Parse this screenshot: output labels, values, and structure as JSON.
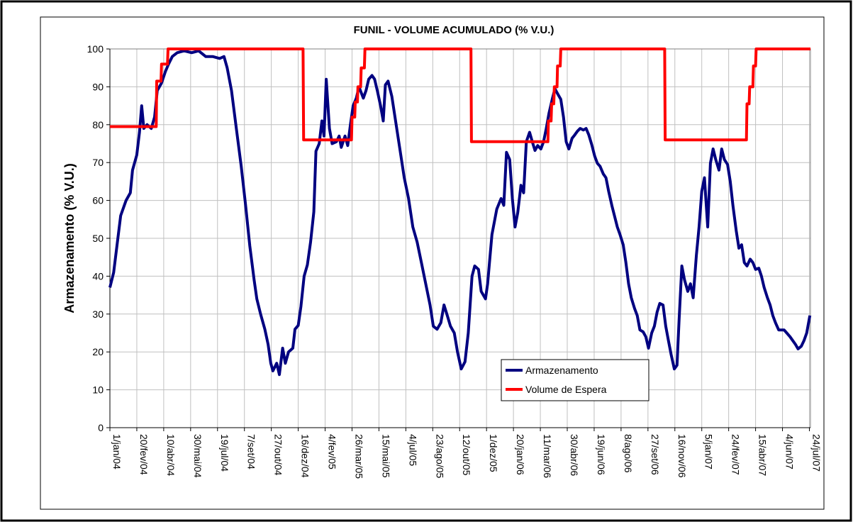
{
  "chart_data": {
    "type": "line",
    "title": "FUNIL - VOLUME ACUMULADO (% V.U.)",
    "y_label": "Armazenamento (% V.U.)",
    "xlim": [
      0,
      1302
    ],
    "xticks": [
      {
        "value": 0,
        "label": "1/jan/04"
      },
      {
        "value": 50,
        "label": "20/fev/04"
      },
      {
        "value": 100,
        "label": "10/abr/04"
      },
      {
        "value": 150,
        "label": "30/mai/04"
      },
      {
        "value": 200,
        "label": "19/jul/04"
      },
      {
        "value": 250,
        "label": "7/set/04"
      },
      {
        "value": 300,
        "label": "27/out/04"
      },
      {
        "value": 350,
        "label": "16/dez/04"
      },
      {
        "value": 400,
        "label": "4/fev/05"
      },
      {
        "value": 450,
        "label": "26/mar/05"
      },
      {
        "value": 500,
        "label": "15/mai/05"
      },
      {
        "value": 550,
        "label": "4/jul/05"
      },
      {
        "value": 600,
        "label": "23/ago/05"
      },
      {
        "value": 650,
        "label": "12/out/05"
      },
      {
        "value": 700,
        "label": "1/dez/05"
      },
      {
        "value": 750,
        "label": "20/jan/06"
      },
      {
        "value": 800,
        "label": "11/mar/06"
      },
      {
        "value": 850,
        "label": "30/abr/06"
      },
      {
        "value": 900,
        "label": "19/jun/06"
      },
      {
        "value": 950,
        "label": "8/ago/06"
      },
      {
        "value": 1000,
        "label": "27/set/06"
      },
      {
        "value": 1050,
        "label": "16/nov/06"
      },
      {
        "value": 1100,
        "label": "5/jan/07"
      },
      {
        "value": 1150,
        "label": "24/fev/07"
      },
      {
        "value": 1200,
        "label": "15/abr/07"
      },
      {
        "value": 1250,
        "label": "4/jun/07"
      },
      {
        "value": 1300,
        "label": "24/jul/07"
      }
    ],
    "ylim": [
      0,
      100
    ],
    "yticks": [
      0,
      10,
      20,
      30,
      40,
      50,
      60,
      70,
      80,
      90,
      100
    ],
    "grid": true,
    "legend": "lower-right",
    "series": [
      {
        "name": "Armazenamento",
        "color": "#000080",
        "x": [
          0,
          7,
          13,
          20,
          30,
          38,
          42,
          50,
          55,
          59,
          63,
          69,
          77,
          83,
          88,
          96,
          103,
          109,
          116,
          125,
          138,
          152,
          165,
          178,
          191,
          204,
          212,
          218,
          226,
          235,
          244,
          252,
          260,
          268,
          273,
          280,
          288,
          294,
          299,
          303,
          310,
          315,
          321,
          326,
          332,
          340,
          344,
          350,
          355,
          361,
          367,
          373,
          379,
          383,
          389,
          394,
          398,
          402,
          408,
          413,
          421,
          426,
          430,
          437,
          442,
          447,
          452,
          458,
          463,
          471,
          476,
          481,
          487,
          492,
          497,
          503,
          508,
          512,
          517,
          524,
          532,
          539,
          547,
          555,
          563,
          571,
          579,
          587,
          595,
          601,
          608,
          615,
          621,
          627,
          633,
          640,
          646,
          653,
          660,
          666,
          673,
          678,
          685,
          690,
          698,
          702,
          710,
          719,
          727,
          732,
          737,
          743,
          748,
          753,
          758,
          764,
          769,
          774,
          780,
          785,
          790,
          795,
          801,
          806,
          811,
          816,
          822,
          827,
          832,
          838,
          843,
          848,
          853,
          859,
          864,
          869,
          874,
          880,
          885,
          890,
          896,
          901,
          906,
          911,
          917,
          922,
          927,
          933,
          938,
          943,
          948,
          954,
          959,
          964,
          969,
          975,
          980,
          985,
          991,
          996,
          1001,
          1007,
          1012,
          1017,
          1022,
          1028,
          1033,
          1038,
          1043,
          1049,
          1054,
          1058,
          1063,
          1068,
          1074,
          1079,
          1084,
          1090,
          1095,
          1100,
          1105,
          1111,
          1116,
          1121,
          1126,
          1132,
          1137,
          1142,
          1148,
          1153,
          1158,
          1164,
          1169,
          1174,
          1179,
          1184,
          1190,
          1195,
          1200,
          1206,
          1211,
          1216,
          1222,
          1227,
          1232,
          1237,
          1243,
          1248,
          1253,
          1258,
          1264,
          1269,
          1274,
          1279,
          1285,
          1290,
          1295,
          1301
        ],
        "values": [
          37,
          41,
          48,
          56,
          60,
          62,
          68,
          72,
          78,
          85,
          79,
          80,
          79,
          82,
          89,
          91,
          94,
          96,
          98,
          99,
          99.5,
          99,
          99.5,
          98,
          98,
          97.5,
          98,
          95,
          89,
          79,
          69,
          59,
          48,
          39,
          34,
          30,
          26,
          22,
          17,
          15,
          17,
          14,
          21,
          17,
          20,
          21,
          26,
          27,
          32,
          40,
          43,
          49,
          57,
          73,
          75,
          81,
          77,
          92,
          79,
          75,
          75.5,
          77,
          74,
          77,
          74.5,
          80,
          85,
          87,
          90,
          87,
          89,
          92,
          93,
          92,
          89,
          85,
          81,
          90.5,
          91.5,
          87.5,
          80,
          73.5,
          66,
          60.5,
          53,
          49,
          43.5,
          38,
          32.4,
          26.8,
          26,
          27.7,
          32.4,
          29.6,
          26.8,
          25,
          20,
          15.5,
          17.4,
          25,
          40,
          42.7,
          41.8,
          36,
          34,
          38,
          51,
          57.7,
          60.5,
          58.7,
          72.7,
          70.8,
          60.5,
          53,
          56.8,
          64,
          62,
          75.5,
          78,
          75.5,
          73.2,
          74.5,
          73.6,
          75.5,
          79,
          83,
          86.7,
          89.5,
          88.2,
          86.7,
          82,
          75.5,
          73.6,
          76.4,
          77.3,
          78.3,
          79,
          78.6,
          79,
          77.3,
          74.5,
          71.7,
          69.8,
          69,
          67,
          66,
          62.4,
          58.6,
          55.8,
          53,
          51,
          48.3,
          43.6,
          38,
          34.3,
          31.5,
          29.6,
          25.8,
          25.3,
          24,
          21,
          25,
          26.8,
          30.5,
          32.8,
          32.4,
          26.8,
          23,
          19.3,
          15.5,
          16.5,
          28.7,
          42.7,
          39,
          36,
          38,
          34.3,
          45.5,
          53,
          62.4,
          66,
          53,
          69.8,
          73.6,
          70.8,
          68,
          73.6,
          70.8,
          69.5,
          65,
          58.6,
          52,
          47.4,
          48.3,
          43.6,
          42.7,
          44.5,
          43.6,
          41.8,
          42.1,
          40,
          37,
          34.3,
          32.4,
          29.6,
          27.7,
          25.8,
          25.8,
          25.8,
          25,
          24,
          23,
          22,
          20.8,
          21.5,
          23,
          25,
          29.6
        ]
      },
      {
        "name": "Volume de Espera",
        "color": "#ff0000",
        "x": [
          0,
          86,
          87,
          95,
          96,
          107,
          108,
          359,
          360,
          449,
          450,
          455,
          456,
          460,
          461,
          466,
          467,
          473,
          474,
          671,
          672,
          814,
          815,
          820,
          821,
          825,
          826,
          831,
          832,
          837,
          838,
          1031,
          1032,
          1183,
          1184,
          1188,
          1189,
          1195,
          1196,
          1200,
          1201,
          1302
        ],
        "values": [
          79.5,
          79.5,
          91.5,
          91.5,
          96,
          96,
          100,
          100,
          76,
          76,
          82,
          82,
          86,
          86,
          90,
          90,
          95,
          95,
          100,
          100,
          75.5,
          75.5,
          81,
          81,
          85.5,
          85.5,
          90,
          90,
          95.5,
          95.5,
          100,
          100,
          76,
          76,
          85.5,
          85.5,
          90,
          90,
          95.5,
          95.5,
          100,
          100
        ]
      }
    ]
  }
}
